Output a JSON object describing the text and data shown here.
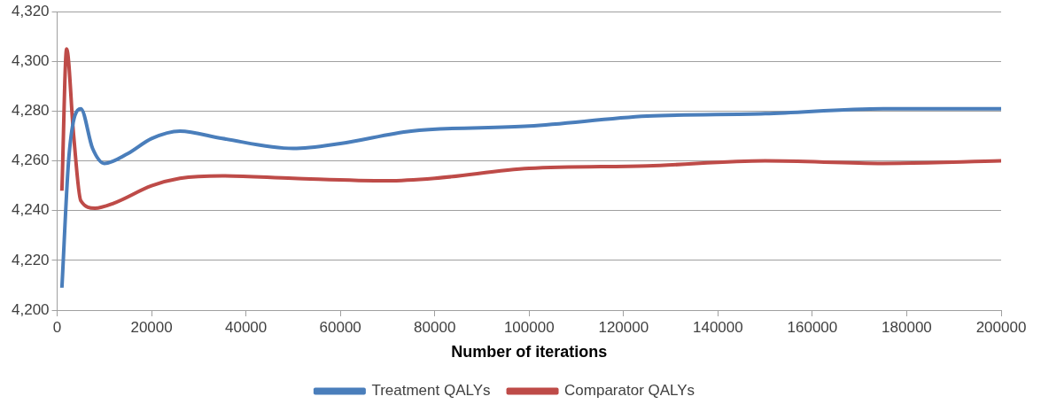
{
  "chart_data": {
    "type": "line",
    "xlabel": "Number of iterations",
    "xlim": [
      0,
      200000
    ],
    "xticks": [
      0,
      20000,
      40000,
      60000,
      80000,
      100000,
      120000,
      140000,
      160000,
      180000,
      200000
    ],
    "ylim": [
      4200,
      4320
    ],
    "yticks": [
      {
        "value": 4200,
        "label": "4,200"
      },
      {
        "value": 4220,
        "label": "4,220"
      },
      {
        "value": 4240,
        "label": "4,240"
      },
      {
        "value": 4260,
        "label": "4,260"
      },
      {
        "value": 4280,
        "label": "4,280"
      },
      {
        "value": 4300,
        "label": "4,300"
      },
      {
        "value": 4320,
        "label": "4,320"
      }
    ],
    "grid": "y",
    "legend": "bottom",
    "marker": "none",
    "line_style": "solid",
    "series": [
      {
        "name": "Treatment QALYs",
        "color": "#4a7ebb",
        "x": [
          1000,
          2500,
          5000,
          7500,
          10000,
          15000,
          20000,
          26000,
          35000,
          50000,
          60000,
          75000,
          100000,
          125000,
          150000,
          175000,
          200000
        ],
        "values": [
          4209,
          4262,
          4281,
          4265,
          4259,
          4263,
          4269,
          4272,
          4269,
          4265,
          4267,
          4272,
          4274,
          4278,
          4279,
          4281,
          4281
        ]
      },
      {
        "name": "Comparator QALYs",
        "color": "#be4b48",
        "x": [
          1000,
          2000,
          3500,
          5000,
          8000,
          12000,
          20000,
          26000,
          35000,
          50000,
          70000,
          80000,
          100000,
          125000,
          150000,
          175000,
          200000
        ],
        "values": [
          4248,
          4305,
          4270,
          4244,
          4241,
          4243,
          4250,
          4253,
          4254,
          4253,
          4252,
          4253,
          4257,
          4258,
          4260,
          4259,
          4260
        ]
      }
    ]
  }
}
